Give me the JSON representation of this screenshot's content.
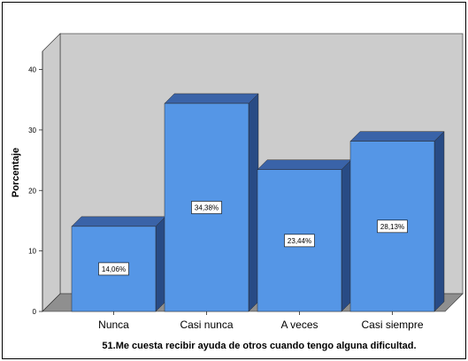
{
  "chart_data": {
    "type": "bar",
    "title": "",
    "xlabel": "51.Me cuesta recibir ayuda de otros cuando tengo alguna dificultad.",
    "ylabel": "Porcentaje",
    "categories": [
      "Nunca",
      "Casi nunca",
      "A veces",
      "Casi siempre"
    ],
    "values": [
      14.06,
      34.38,
      23.44,
      28.13
    ],
    "data_labels": [
      "14,06%",
      "34,38%",
      "23,44%",
      "28,13%"
    ],
    "yticks": [
      "0",
      "10",
      "20",
      "30",
      "40"
    ],
    "ylim": [
      0,
      43
    ],
    "grid": false,
    "legend": "none",
    "style": "3d",
    "colors": {
      "bar_front": "#5596E6",
      "bar_top": "#3A63A8",
      "bar_side": "#284B85",
      "plot_bg": "#CCCCCC",
      "back_wall": "#CCCCCC",
      "floor": "#8F8F8F",
      "edge": "#2A2A2A"
    }
  }
}
